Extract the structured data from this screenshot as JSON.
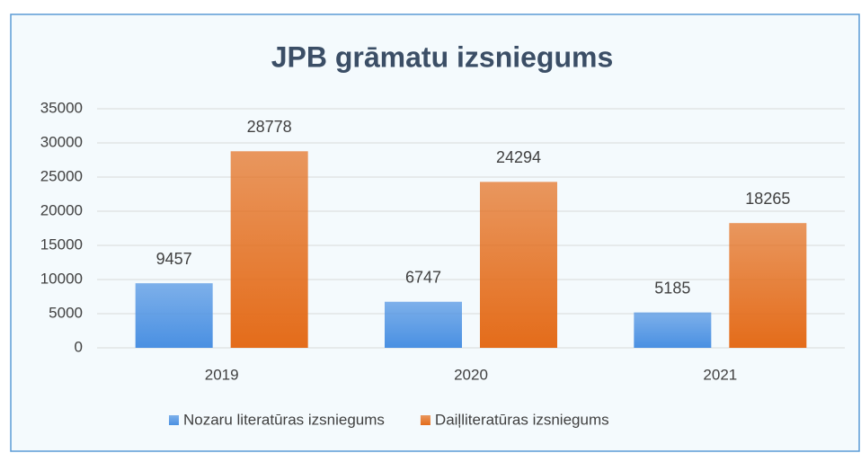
{
  "chart_data": {
    "type": "bar",
    "title": "JPB grāmatu izsniegums",
    "categories": [
      "2019",
      "2020",
      "2021"
    ],
    "series": [
      {
        "name": "Nozaru literatūras izsniegums",
        "color": "#4a90e2",
        "values": [
          9457,
          6747,
          5185
        ]
      },
      {
        "name": "Daiļliteratūras izsniegums",
        "color": "#e46c1a",
        "values": [
          28778,
          24294,
          18265
        ]
      }
    ],
    "ylim": [
      0,
      35000
    ],
    "yticks": [
      0,
      5000,
      10000,
      15000,
      20000,
      25000,
      30000,
      35000
    ],
    "grid": true,
    "legend": "bottom"
  }
}
